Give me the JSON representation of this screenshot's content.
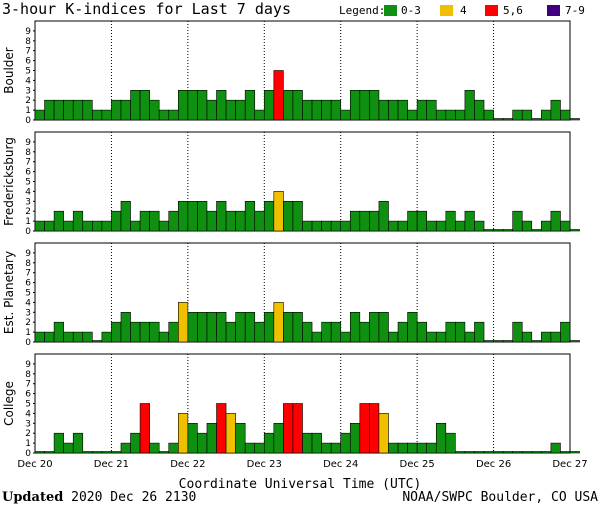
{
  "title": "3-hour K-indices for Last 7 days",
  "legend": {
    "label": "Legend:",
    "items": [
      {
        "label": "0-3",
        "color": "#109010"
      },
      {
        "label": "4",
        "color": "#f0c000"
      },
      {
        "label": "5,6",
        "color": "#ff0000"
      },
      {
        "label": "7-9",
        "color": "#400080"
      }
    ]
  },
  "footer": {
    "updated_label": "Updated",
    "updated_value": "2020 Dec 26 2130",
    "source": "NOAA/SWPC Boulder, CO USA"
  },
  "chart_data": {
    "type": "bar",
    "xlabel": "Coordinate Universal Time (UTC)",
    "x_ticks": [
      "Dec 20",
      "Dec 21",
      "Dec 22",
      "Dec 23",
      "Dec 24",
      "Dec 25",
      "Dec 26",
      "Dec 27"
    ],
    "y_ticks": [
      "0",
      "1",
      "2",
      "3",
      "4",
      "5",
      "6",
      "7",
      "8",
      "9"
    ],
    "ylim": [
      0,
      9
    ],
    "intervals_per_day": 8,
    "color_rule": {
      "0-3": "#109010",
      "4": "#f0c000",
      "5-6": "#ff0000",
      "7-9": "#400080"
    },
    "panels": [
      {
        "name": "Boulder",
        "values": [
          1,
          2,
          2,
          2,
          2,
          2,
          1,
          1,
          2,
          2,
          3,
          3,
          2,
          1,
          1,
          3,
          3,
          3,
          2,
          3,
          2,
          2,
          3,
          1,
          3,
          5,
          3,
          3,
          2,
          2,
          2,
          2,
          1,
          3,
          3,
          3,
          2,
          2,
          2,
          1,
          2,
          2,
          1,
          1,
          1,
          3,
          2,
          1,
          0,
          0,
          1,
          1,
          0,
          1,
          2,
          1,
          0
        ]
      },
      {
        "name": "Fredericksburg",
        "values": [
          1,
          1,
          2,
          1,
          2,
          1,
          1,
          1,
          2,
          3,
          1,
          2,
          2,
          1,
          2,
          3,
          3,
          3,
          2,
          3,
          2,
          2,
          3,
          2,
          3,
          4,
          3,
          3,
          1,
          1,
          1,
          1,
          1,
          2,
          2,
          2,
          3,
          1,
          1,
          2,
          2,
          1,
          1,
          2,
          1,
          2,
          1,
          0,
          0,
          0,
          2,
          1,
          0,
          1,
          2,
          1,
          0
        ]
      },
      {
        "name": "Est. Planetary",
        "values": [
          1,
          1,
          2,
          1,
          1,
          1,
          0,
          1,
          2,
          3,
          2,
          2,
          2,
          1,
          2,
          4,
          3,
          3,
          3,
          3,
          2,
          3,
          3,
          2,
          3,
          4,
          3,
          3,
          2,
          1,
          2,
          2,
          1,
          3,
          2,
          3,
          3,
          1,
          2,
          3,
          2,
          1,
          1,
          2,
          2,
          1,
          2,
          0,
          0,
          0,
          2,
          1,
          0,
          1,
          1,
          2,
          0
        ]
      },
      {
        "name": "College",
        "values": [
          0,
          0,
          2,
          1,
          2,
          0,
          0,
          0,
          0,
          1,
          2,
          5,
          1,
          0,
          1,
          4,
          3,
          2,
          3,
          5,
          4,
          3,
          1,
          1,
          2,
          3,
          5,
          5,
          2,
          2,
          1,
          1,
          2,
          3,
          5,
          5,
          4,
          1,
          1,
          1,
          1,
          1,
          3,
          2,
          0,
          0,
          0,
          0,
          0,
          0,
          0,
          0,
          0,
          0,
          1,
          0,
          0
        ]
      }
    ]
  }
}
